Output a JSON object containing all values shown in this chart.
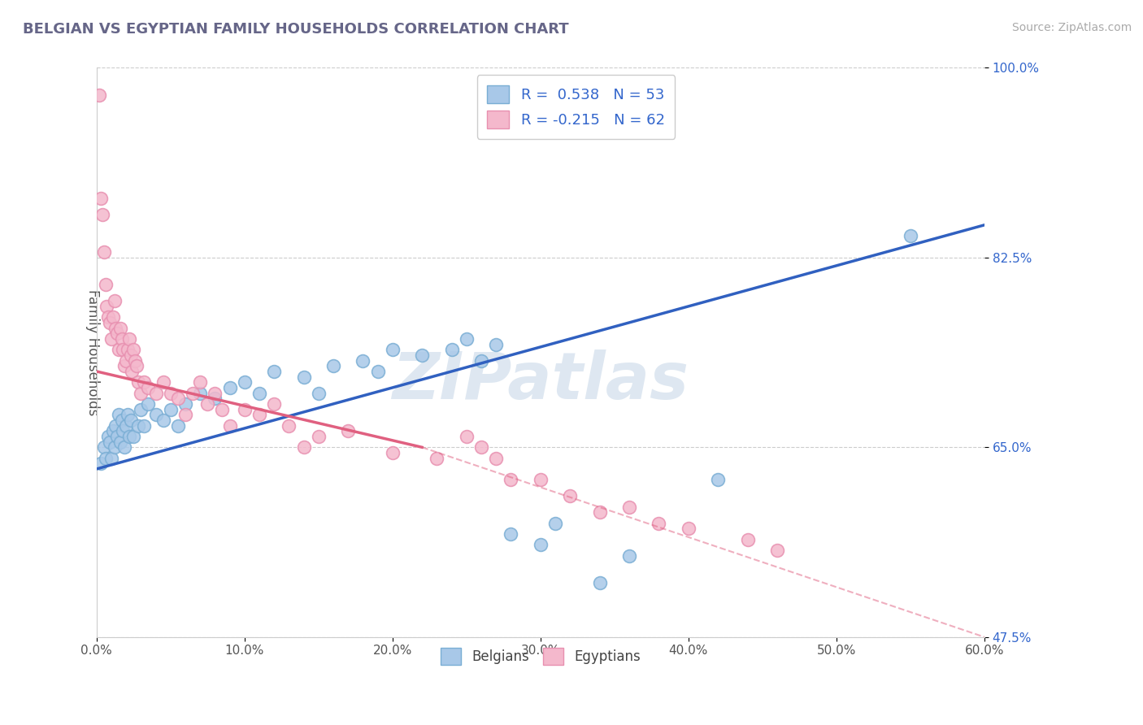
{
  "title": "BELGIAN VS EGYPTIAN FAMILY HOUSEHOLDS CORRELATION CHART",
  "source": "Source: ZipAtlas.com",
  "ylabel": "Family Households",
  "xlim": [
    0.0,
    60.0
  ],
  "ylim": [
    47.5,
    100.0
  ],
  "xticks": [
    0.0,
    10.0,
    20.0,
    30.0,
    40.0,
    50.0,
    60.0
  ],
  "yticks": [
    47.5,
    65.0,
    82.5,
    100.0
  ],
  "xticklabels": [
    "0.0%",
    "10.0%",
    "20.0%",
    "30.0%",
    "40.0%",
    "50.0%",
    "60.0%"
  ],
  "yticklabels": [
    "47.5%",
    "65.0%",
    "82.5%",
    "100.0%"
  ],
  "belgian_color": "#a8c8e8",
  "egyptian_color": "#f4b8cc",
  "belgian_edge": "#7aaed4",
  "egyptian_edge": "#e890b0",
  "trend_blue": "#3060c0",
  "trend_pink": "#e06080",
  "legend_R_blue": "0.538",
  "legend_N_blue": "53",
  "legend_R_pink": "-0.215",
  "legend_N_pink": "62",
  "legend_label_color": "#3366cc",
  "watermark": "ZIPatlas",
  "background_color": "#ffffff",
  "grid_color": "#cccccc",
  "belgian_x": [
    0.3,
    0.5,
    0.6,
    0.8,
    0.9,
    1.0,
    1.1,
    1.2,
    1.3,
    1.4,
    1.5,
    1.6,
    1.7,
    1.8,
    1.9,
    2.0,
    2.1,
    2.2,
    2.3,
    2.5,
    2.8,
    3.0,
    3.2,
    3.5,
    4.0,
    4.5,
    5.0,
    5.5,
    6.0,
    7.0,
    8.0,
    9.0,
    10.0,
    11.0,
    12.0,
    14.0,
    15.0,
    16.0,
    18.0,
    19.0,
    20.0,
    22.0,
    24.0,
    25.0,
    26.0,
    27.0,
    28.0,
    30.0,
    31.0,
    34.0,
    36.0,
    42.0,
    55.0
  ],
  "belgian_y": [
    63.5,
    65.0,
    64.0,
    66.0,
    65.5,
    64.0,
    66.5,
    65.0,
    67.0,
    66.0,
    68.0,
    65.5,
    67.5,
    66.5,
    65.0,
    67.0,
    68.0,
    66.0,
    67.5,
    66.0,
    67.0,
    68.5,
    67.0,
    69.0,
    68.0,
    67.5,
    68.5,
    67.0,
    69.0,
    70.0,
    69.5,
    70.5,
    71.0,
    70.0,
    72.0,
    71.5,
    70.0,
    72.5,
    73.0,
    72.0,
    74.0,
    73.5,
    74.0,
    75.0,
    73.0,
    74.5,
    57.0,
    56.0,
    58.0,
    52.5,
    55.0,
    62.0,
    84.5
  ],
  "egyptian_x": [
    0.2,
    0.3,
    0.4,
    0.5,
    0.6,
    0.7,
    0.8,
    0.9,
    1.0,
    1.1,
    1.2,
    1.3,
    1.4,
    1.5,
    1.6,
    1.7,
    1.8,
    1.9,
    2.0,
    2.1,
    2.2,
    2.3,
    2.4,
    2.5,
    2.6,
    2.7,
    2.8,
    3.0,
    3.2,
    3.5,
    4.0,
    4.5,
    5.0,
    5.5,
    6.0,
    6.5,
    7.0,
    7.5,
    8.0,
    8.5,
    9.0,
    10.0,
    11.0,
    12.0,
    13.0,
    14.0,
    15.0,
    17.0,
    20.0,
    23.0,
    25.0,
    26.0,
    27.0,
    28.0,
    30.0,
    32.0,
    34.0,
    36.0,
    38.0,
    40.0,
    44.0,
    46.0
  ],
  "egyptian_y": [
    97.5,
    88.0,
    86.5,
    83.0,
    80.0,
    78.0,
    77.0,
    76.5,
    75.0,
    77.0,
    78.5,
    76.0,
    75.5,
    74.0,
    76.0,
    75.0,
    74.0,
    72.5,
    73.0,
    74.0,
    75.0,
    73.5,
    72.0,
    74.0,
    73.0,
    72.5,
    71.0,
    70.0,
    71.0,
    70.5,
    70.0,
    71.0,
    70.0,
    69.5,
    68.0,
    70.0,
    71.0,
    69.0,
    70.0,
    68.5,
    67.0,
    68.5,
    68.0,
    69.0,
    67.0,
    65.0,
    66.0,
    66.5,
    64.5,
    64.0,
    66.0,
    65.0,
    64.0,
    62.0,
    62.0,
    60.5,
    59.0,
    59.5,
    58.0,
    57.5,
    56.5,
    55.5
  ]
}
